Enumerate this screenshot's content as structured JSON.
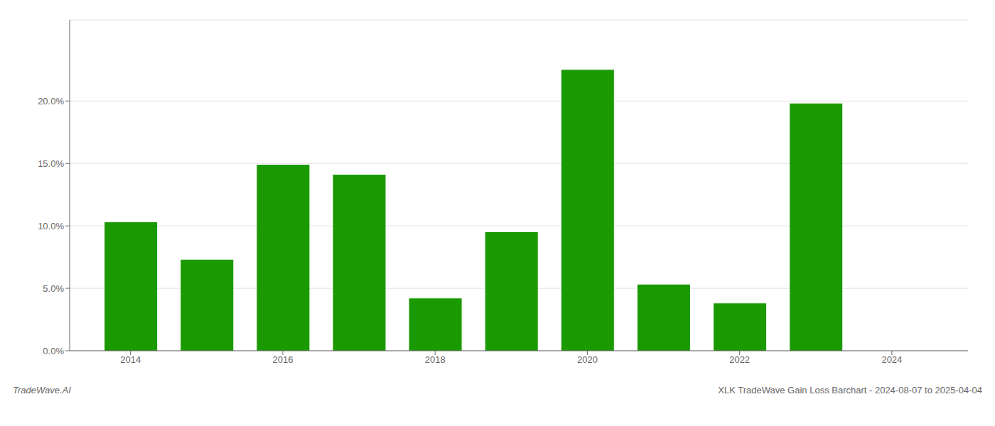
{
  "chart_data": {
    "type": "bar",
    "x": [
      2014,
      2015,
      2016,
      2017,
      2018,
      2019,
      2020,
      2021,
      2022,
      2023
    ],
    "values": [
      0.103,
      0.073,
      0.149,
      0.141,
      0.042,
      0.095,
      0.225,
      0.053,
      0.038,
      0.198
    ],
    "color": "#1a9a00",
    "xlim": [
      2013.2,
      2025.0
    ],
    "xticks": [
      2014,
      2016,
      2018,
      2020,
      2022,
      2024
    ],
    "ylim": [
      0,
      0.265
    ],
    "yticks": [
      {
        "value": 0.0,
        "label": "0.0%"
      },
      {
        "value": 0.05,
        "label": "5.0%"
      },
      {
        "value": 0.1,
        "label": "10.0%"
      },
      {
        "value": 0.15,
        "label": "15.0%"
      },
      {
        "value": 0.2,
        "label": "20.0%"
      }
    ],
    "grid": true,
    "annotations": [
      "TradeWave.AI",
      "XLK TradeWave Gain Loss Barchart - 2024-08-07 to 2025-04-04"
    ]
  }
}
